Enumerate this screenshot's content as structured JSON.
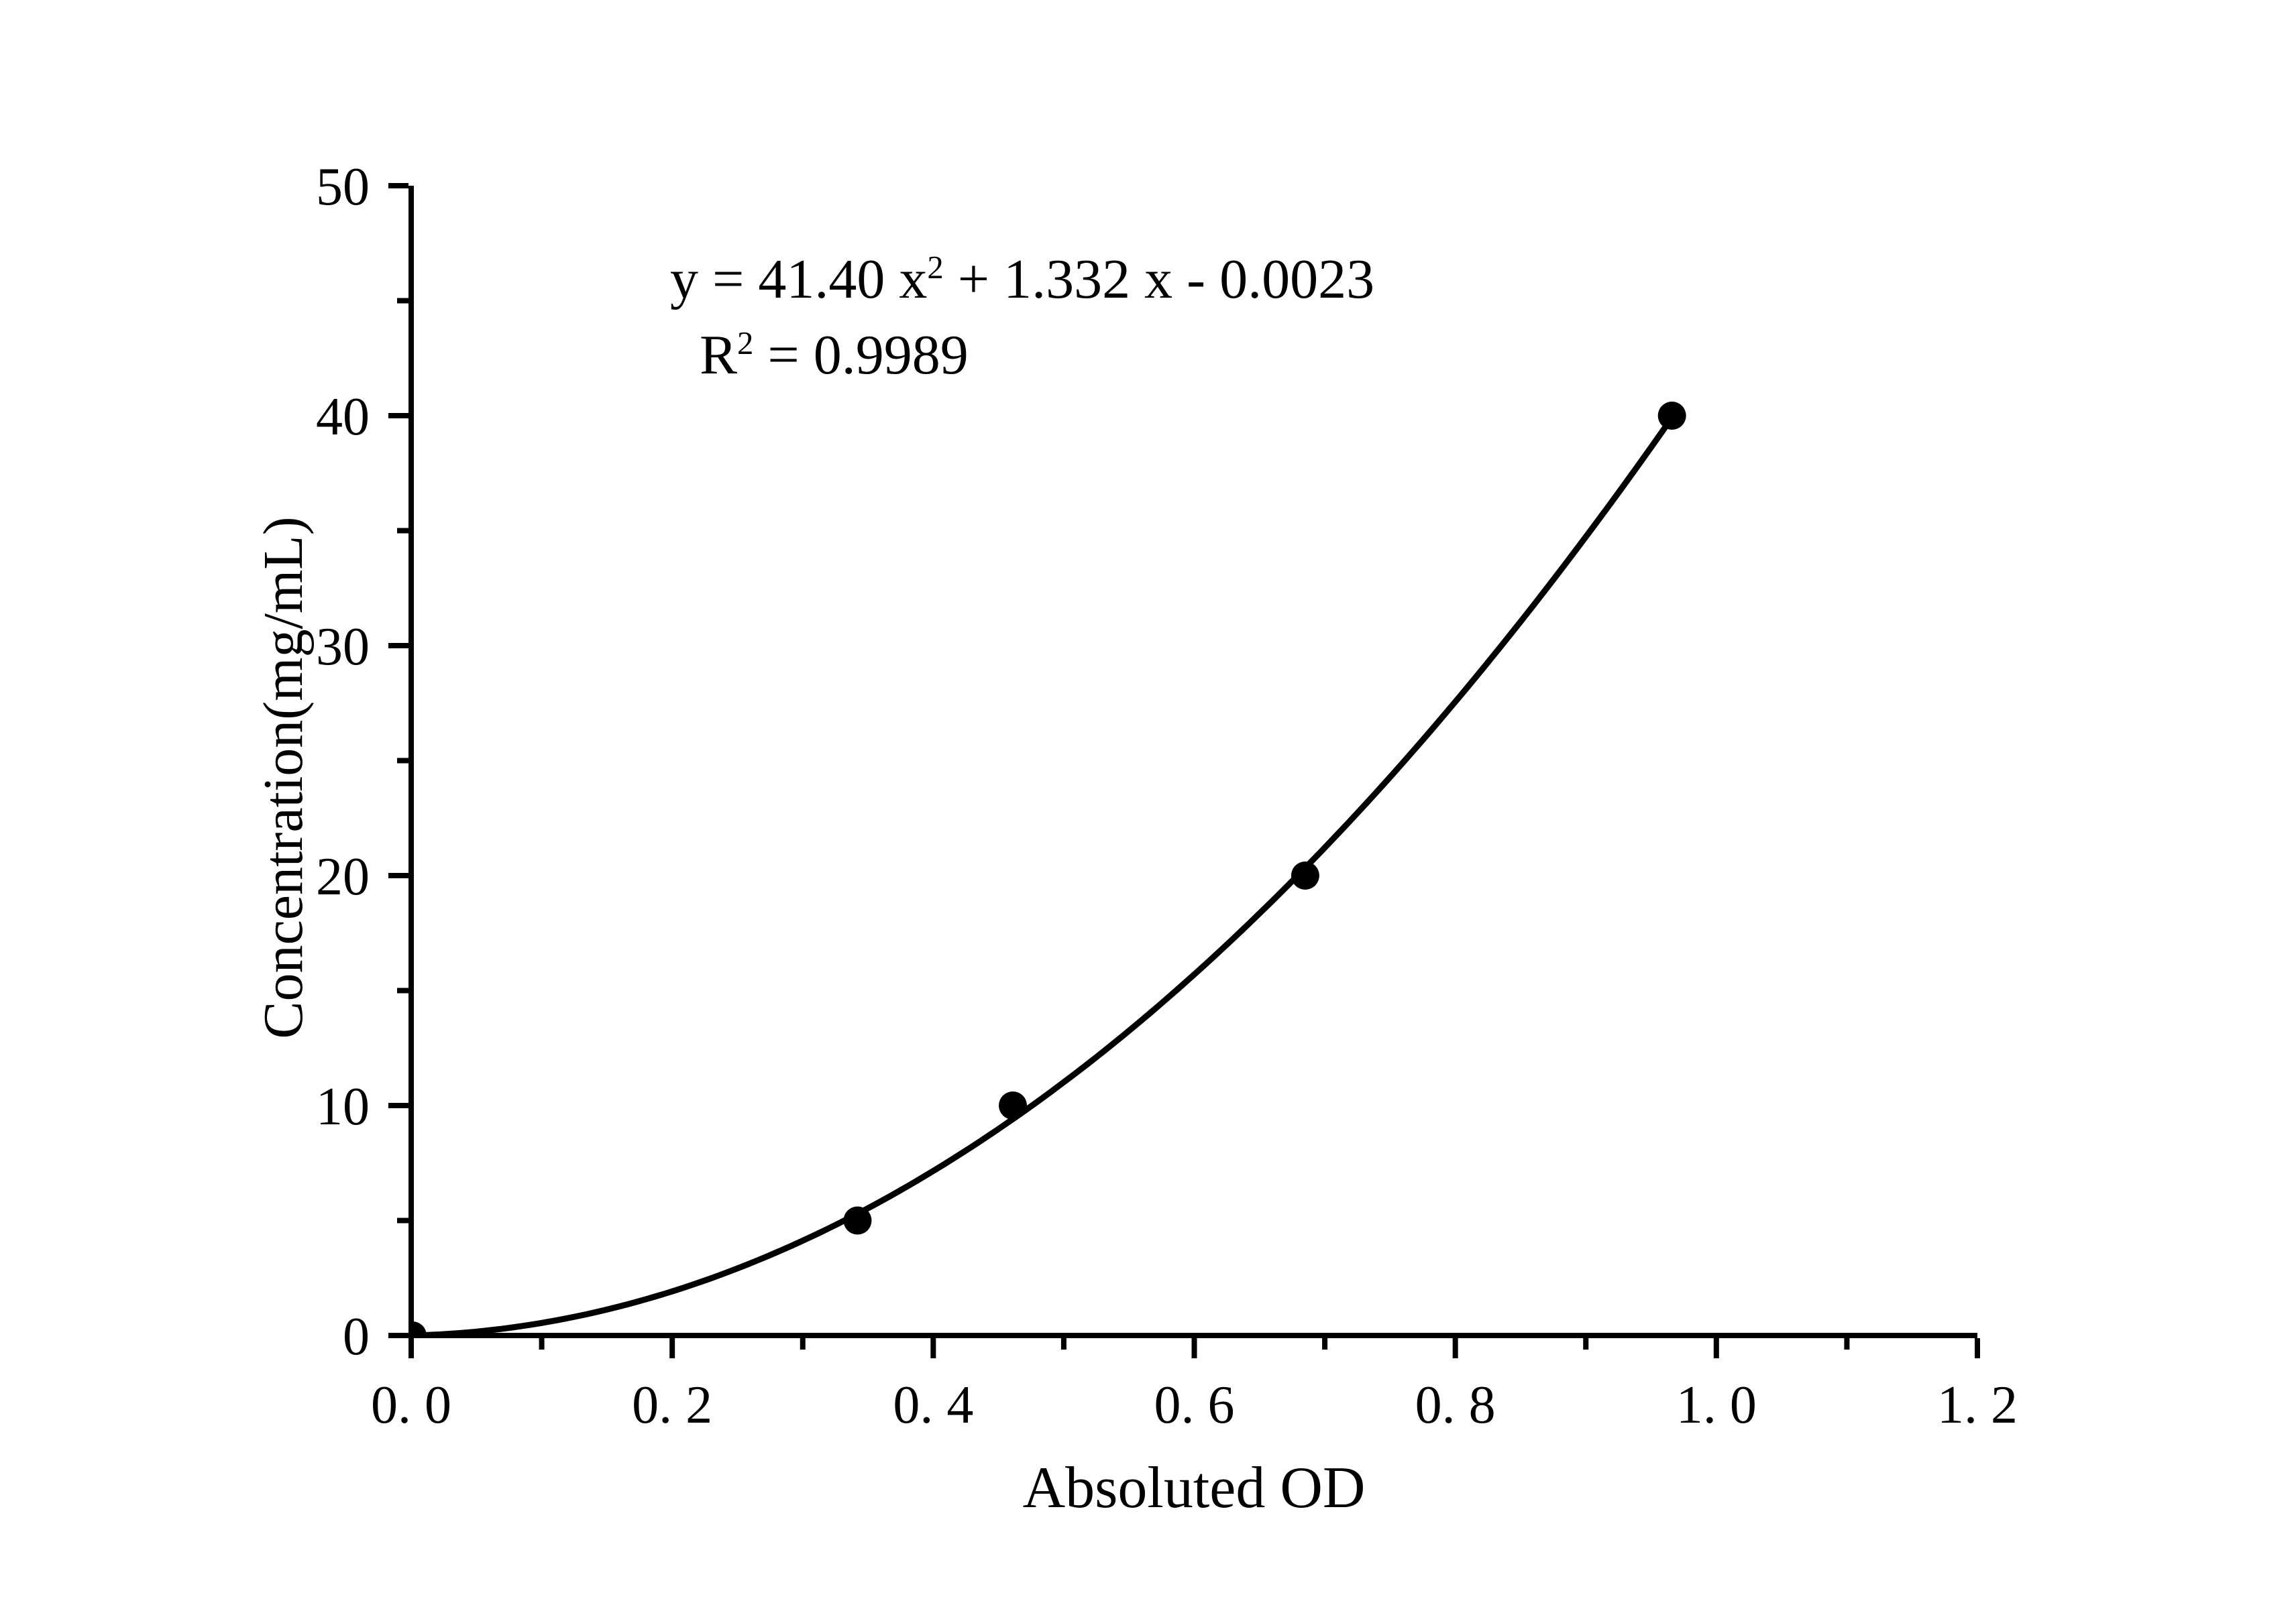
{
  "chart_data": {
    "type": "scatter",
    "title": "",
    "xlabel": "Absoluted OD",
    "ylabel": "Concentration(mg/mL)",
    "xlim": [
      0,
      1.2
    ],
    "ylim": [
      0,
      50
    ],
    "grid": false,
    "legend": null,
    "x_major_ticks": [
      0,
      0.2,
      0.4,
      0.6,
      0.8,
      1.0,
      1.2
    ],
    "x_minor_ticks": [
      0.1,
      0.3,
      0.5,
      0.7,
      0.9,
      1.1
    ],
    "x_tick_labels": [
      "0. 0",
      "0. 2",
      "0. 4",
      "0. 6",
      "0. 8",
      "1. 0",
      "1. 2"
    ],
    "y_major_ticks": [
      0,
      10,
      20,
      30,
      40,
      50
    ],
    "y_minor_ticks": [
      5,
      15,
      25,
      35,
      45
    ],
    "y_tick_labels": [
      "0",
      "10",
      "20",
      "30",
      "40",
      "50"
    ],
    "points": [
      {
        "x": 0.001,
        "y": 0
      },
      {
        "x": 0.342,
        "y": 5
      },
      {
        "x": 0.461,
        "y": 10
      },
      {
        "x": 0.685,
        "y": 20
      },
      {
        "x": 0.966,
        "y": 40
      }
    ],
    "fit": {
      "type": "quadratic",
      "a": 41.4,
      "b": 1.332,
      "c": -0.0023,
      "r2": 0.9989,
      "x_end": 0.966
    },
    "colors": {
      "curve": "#000000",
      "marker": "#000000",
      "axis": "#000000",
      "background": "#ffffff"
    },
    "annotations": {
      "equation": {
        "pre": "y = 41.40 x",
        "sup": "2",
        "post": " + 1.332 x - 0.0023"
      },
      "r_squared": {
        "pre": "R",
        "sup": "2",
        "post": " = 0.9989"
      }
    }
  }
}
